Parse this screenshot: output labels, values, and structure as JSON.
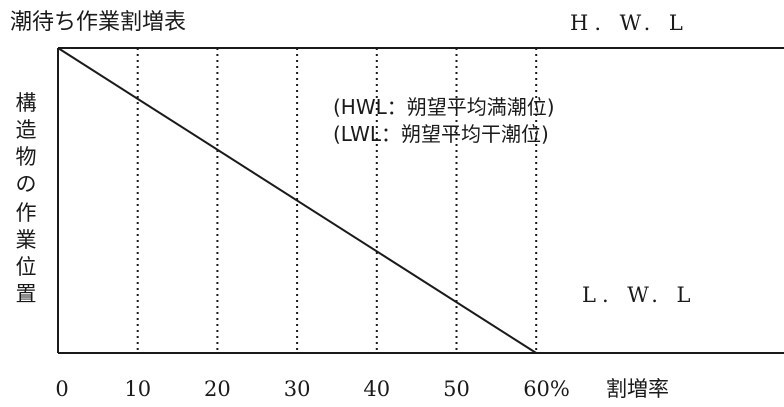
{
  "title": "潮待ち作業割増表",
  "hwl_label": "H. W. L",
  "lwl_label": "L. W. L",
  "notes": [
    "(HWL：朔望平均満潮位)",
    "(LWL：朔望平均干潮位)"
  ],
  "vertical_label": [
    "構",
    "造",
    "物",
    "の",
    "作",
    "業",
    "位",
    "置"
  ],
  "chart_data": {
    "type": "line",
    "x": [
      0,
      60
    ],
    "y": [
      100,
      0
    ],
    "x_ticks": [
      "0",
      "10",
      "20",
      "30",
      "40",
      "50",
      "60%"
    ],
    "x_tick_values": [
      0,
      10,
      20,
      30,
      40,
      50,
      60
    ],
    "xlabel": "割増率",
    "xlim": [
      0,
      90
    ],
    "gridlines_x": [
      10,
      20,
      30,
      40,
      50,
      60
    ],
    "grid_style": "dotted-vertical"
  },
  "colors": {
    "line": "#1a1a1a",
    "text": "#1a1a1a",
    "background": "#ffffff"
  }
}
